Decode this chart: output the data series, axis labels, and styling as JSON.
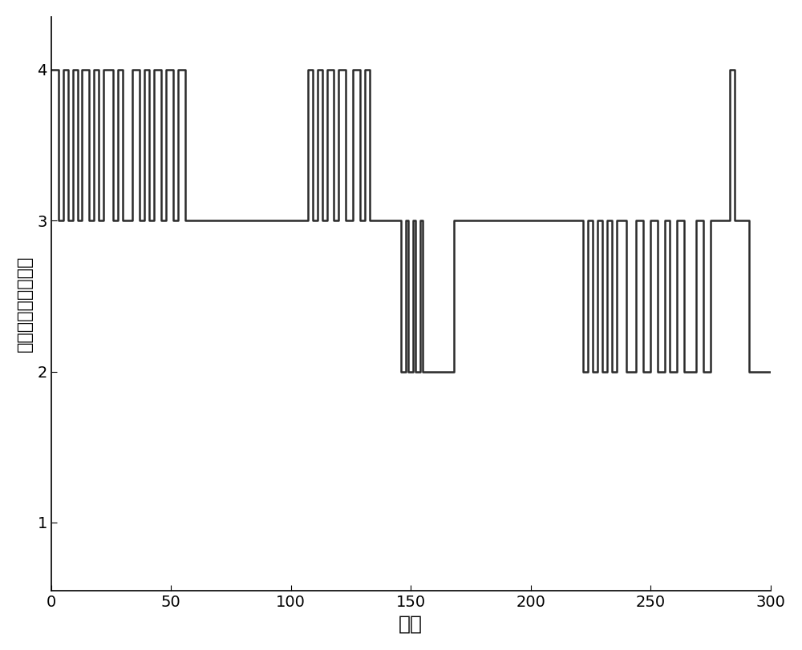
{
  "title": "",
  "xlabel": "环数",
  "ylabel": "盾构机掘进状态等级",
  "xlim": [
    0,
    300
  ],
  "ylim": [
    0.55,
    4.35
  ],
  "yticks": [
    1,
    2,
    3,
    4
  ],
  "xticks": [
    0,
    50,
    100,
    150,
    200,
    250,
    300
  ],
  "line_color": "#2b2b2b",
  "line_width": 1.8,
  "bg_color": "#ffffff",
  "segments": [
    [
      0,
      4
    ],
    [
      3,
      3
    ],
    [
      5,
      4
    ],
    [
      7,
      3
    ],
    [
      9,
      4
    ],
    [
      11,
      3
    ],
    [
      13,
      4
    ],
    [
      16,
      3
    ],
    [
      18,
      4
    ],
    [
      20,
      3
    ],
    [
      22,
      4
    ],
    [
      26,
      3
    ],
    [
      28,
      4
    ],
    [
      30,
      3
    ],
    [
      34,
      4
    ],
    [
      37,
      3
    ],
    [
      39,
      4
    ],
    [
      41,
      3
    ],
    [
      43,
      4
    ],
    [
      46,
      3
    ],
    [
      48,
      4
    ],
    [
      51,
      3
    ],
    [
      53,
      4
    ],
    [
      56,
      3
    ],
    [
      63,
      3
    ],
    [
      105,
      3
    ],
    [
      107,
      4
    ],
    [
      109,
      3
    ],
    [
      111,
      4
    ],
    [
      113,
      3
    ],
    [
      115,
      4
    ],
    [
      118,
      3
    ],
    [
      120,
      4
    ],
    [
      123,
      3
    ],
    [
      126,
      4
    ],
    [
      129,
      3
    ],
    [
      131,
      4
    ],
    [
      133,
      3
    ],
    [
      143,
      3
    ],
    [
      145,
      3
    ],
    [
      146,
      2
    ],
    [
      148,
      3
    ],
    [
      149,
      2
    ],
    [
      151,
      3
    ],
    [
      152,
      2
    ],
    [
      154,
      3
    ],
    [
      155,
      2
    ],
    [
      158,
      2
    ],
    [
      163,
      2
    ],
    [
      168,
      3
    ],
    [
      220,
      3
    ],
    [
      222,
      2
    ],
    [
      224,
      3
    ],
    [
      226,
      2
    ],
    [
      228,
      3
    ],
    [
      230,
      2
    ],
    [
      232,
      3
    ],
    [
      234,
      2
    ],
    [
      236,
      3
    ],
    [
      240,
      2
    ],
    [
      244,
      3
    ],
    [
      247,
      2
    ],
    [
      250,
      3
    ],
    [
      253,
      2
    ],
    [
      256,
      3
    ],
    [
      258,
      2
    ],
    [
      261,
      3
    ],
    [
      264,
      2
    ],
    [
      269,
      3
    ],
    [
      272,
      2
    ],
    [
      275,
      3
    ],
    [
      280,
      3
    ],
    [
      283,
      4
    ],
    [
      285,
      3
    ],
    [
      291,
      2
    ],
    [
      300,
      2
    ]
  ]
}
